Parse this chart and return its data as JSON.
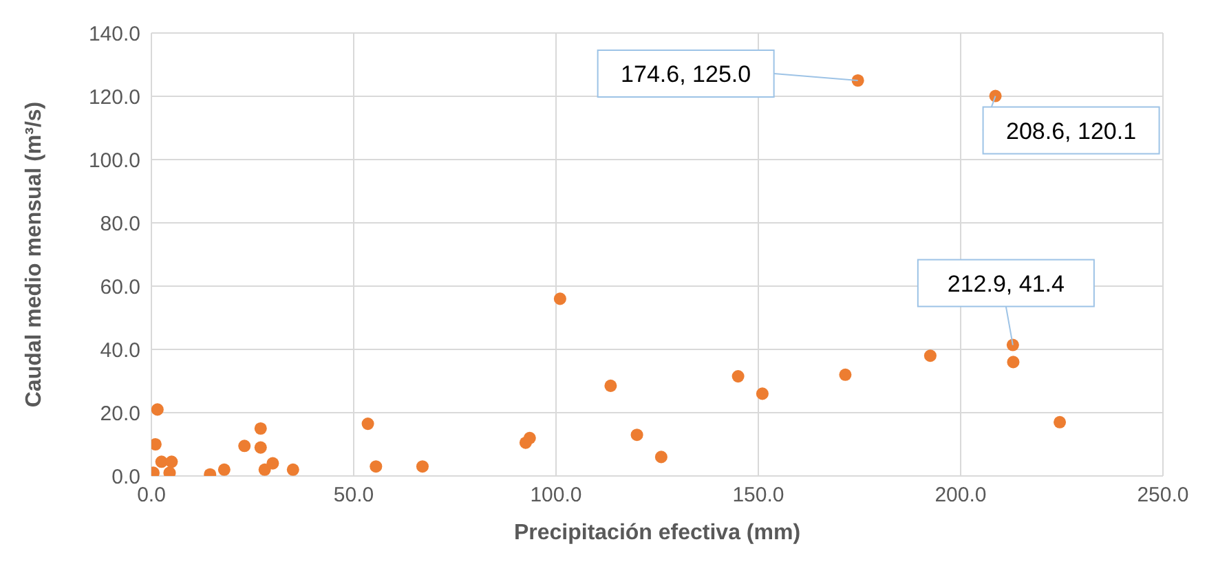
{
  "chart_data": {
    "type": "scatter",
    "xlabel": "Precipitación efectiva (mm)",
    "ylabel": "Caudal medio mensual (m³/s)",
    "x": [
      1.5,
      1,
      0.5,
      2.5,
      4.5,
      5,
      14.5,
      18,
      23,
      27,
      27,
      28,
      30,
      35,
      53.5,
      55.5,
      67,
      92.5,
      93.5,
      101,
      113.5,
      120,
      126,
      145,
      151,
      171.5,
      174.6,
      192.5,
      208.6,
      212.9,
      213,
      224.5
    ],
    "series": [
      {
        "color": "#ed7d31",
        "values": [
          21,
          10,
          1,
          4.5,
          1,
          4.5,
          0.5,
          2,
          9.5,
          15,
          9,
          2,
          4,
          2,
          16.5,
          3,
          3,
          10.5,
          12,
          56,
          28.5,
          13,
          6,
          31.5,
          26,
          32,
          125,
          38,
          120.1,
          41.4,
          36,
          17
        ]
      }
    ],
    "xlim": [
      0,
      250
    ],
    "xticks": [
      {
        "value": 0,
        "label": "0.0"
      },
      {
        "value": 50,
        "label": "50.0"
      },
      {
        "value": 100,
        "label": "100.0"
      },
      {
        "value": 150,
        "label": "150.0"
      },
      {
        "value": 200,
        "label": "200.0"
      },
      {
        "value": 250,
        "label": "250.0"
      }
    ],
    "ylim": [
      0,
      140
    ],
    "yticks": [
      {
        "value": 0,
        "label": "0.0"
      },
      {
        "value": 20,
        "label": "20.0"
      },
      {
        "value": 40,
        "label": "40.0"
      },
      {
        "value": 60,
        "label": "60.0"
      },
      {
        "value": 80,
        "label": "80.0"
      },
      {
        "value": 100,
        "label": "100.0"
      },
      {
        "value": 120,
        "label": "120.0"
      },
      {
        "value": 140,
        "label": "140.0"
      }
    ],
    "grid": true,
    "marker": "circle",
    "annotations": [
      {
        "text": "174.6, 125.0",
        "x": 174.6,
        "y": 125
      },
      {
        "text": "208.6, 120.1",
        "x": 208.6,
        "y": 120.1
      },
      {
        "text": "212.9, 41.4",
        "x": 212.9,
        "y": 41.4
      }
    ]
  }
}
